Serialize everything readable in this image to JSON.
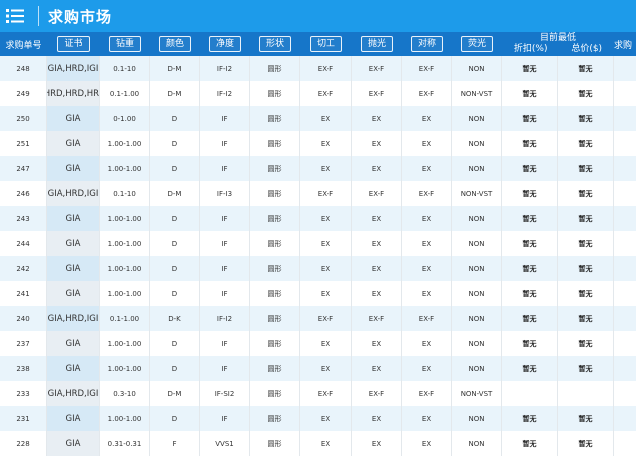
{
  "app": {
    "title": "求购市场"
  },
  "columns": {
    "order_no": "求购单号",
    "cert": "证书",
    "carat": "钻重",
    "color": "颜色",
    "clarity": "净度",
    "shape": "形状",
    "cut": "切工",
    "polish": "抛光",
    "symmetry": "对称",
    "fluor": "荧光",
    "lowest_title": "目前最低",
    "discount": "折扣(%)",
    "total": "总价($)",
    "clipped": "求购"
  },
  "rows": [
    {
      "no": "248",
      "cert": "GIA,HRD,IGI",
      "carat": "0.1-10",
      "color": "D-M",
      "clarity": "IF-I2",
      "shape": "圆形",
      "cut": "EX-F",
      "polish": "EX-F",
      "sym": "EX-F",
      "fluor": "NON",
      "discount": "暂无",
      "total": "暂无"
    },
    {
      "no": "249",
      "cert": "GIA,HRD,HRD,HRD,IGI",
      "carat": "0.1-1.00",
      "color": "D-M",
      "clarity": "IF-I2",
      "shape": "圆形",
      "cut": "EX-F",
      "polish": "EX-F",
      "sym": "EX-F",
      "fluor": "NON-VST",
      "discount": "暂无",
      "total": "暂无"
    },
    {
      "no": "250",
      "cert": "GIA",
      "carat": "0-1.00",
      "color": "D",
      "clarity": "IF",
      "shape": "圆形",
      "cut": "EX",
      "polish": "EX",
      "sym": "EX",
      "fluor": "NON",
      "discount": "暂无",
      "total": "暂无"
    },
    {
      "no": "251",
      "cert": "GIA",
      "carat": "1.00-1.00",
      "color": "D",
      "clarity": "IF",
      "shape": "圆形",
      "cut": "EX",
      "polish": "EX",
      "sym": "EX",
      "fluor": "NON",
      "discount": "暂无",
      "total": "暂无"
    },
    {
      "no": "247",
      "cert": "GIA",
      "carat": "1.00-1.00",
      "color": "D",
      "clarity": "IF",
      "shape": "圆形",
      "cut": "EX",
      "polish": "EX",
      "sym": "EX",
      "fluor": "NON",
      "discount": "暂无",
      "total": "暂无"
    },
    {
      "no": "246",
      "cert": "GIA,HRD,IGI",
      "carat": "0.1-10",
      "color": "D-M",
      "clarity": "IF-I3",
      "shape": "圆形",
      "cut": "EX-F",
      "polish": "EX-F",
      "sym": "EX-F",
      "fluor": "NON-VST",
      "discount": "暂无",
      "total": "暂无"
    },
    {
      "no": "243",
      "cert": "GIA",
      "carat": "1.00-1.00",
      "color": "D",
      "clarity": "IF",
      "shape": "圆形",
      "cut": "EX",
      "polish": "EX",
      "sym": "EX",
      "fluor": "NON",
      "discount": "暂无",
      "total": "暂无"
    },
    {
      "no": "244",
      "cert": "GIA",
      "carat": "1.00-1.00",
      "color": "D",
      "clarity": "IF",
      "shape": "圆形",
      "cut": "EX",
      "polish": "EX",
      "sym": "EX",
      "fluor": "NON",
      "discount": "暂无",
      "total": "暂无"
    },
    {
      "no": "242",
      "cert": "GIA",
      "carat": "1.00-1.00",
      "color": "D",
      "clarity": "IF",
      "shape": "圆形",
      "cut": "EX",
      "polish": "EX",
      "sym": "EX",
      "fluor": "NON",
      "discount": "暂无",
      "total": "暂无"
    },
    {
      "no": "241",
      "cert": "GIA",
      "carat": "1.00-1.00",
      "color": "D",
      "clarity": "IF",
      "shape": "圆形",
      "cut": "EX",
      "polish": "EX",
      "sym": "EX",
      "fluor": "NON",
      "discount": "暂无",
      "total": "暂无"
    },
    {
      "no": "240",
      "cert": "GIA,HRD,IGI",
      "carat": "0.1-1.00",
      "color": "D-K",
      "clarity": "IF-I2",
      "shape": "圆形",
      "cut": "EX-F",
      "polish": "EX-F",
      "sym": "EX-F",
      "fluor": "NON",
      "discount": "暂无",
      "total": "暂无"
    },
    {
      "no": "237",
      "cert": "GIA",
      "carat": "1.00-1.00",
      "color": "D",
      "clarity": "IF",
      "shape": "圆形",
      "cut": "EX",
      "polish": "EX",
      "sym": "EX",
      "fluor": "NON",
      "discount": "暂无",
      "total": "暂无"
    },
    {
      "no": "238",
      "cert": "GIA",
      "carat": "1.00-1.00",
      "color": "D",
      "clarity": "IF",
      "shape": "圆形",
      "cut": "EX",
      "polish": "EX",
      "sym": "EX",
      "fluor": "NON",
      "discount": "暂无",
      "total": "暂无"
    },
    {
      "no": "233",
      "cert": "GIA,HRD,IGI",
      "carat": "0.3-10",
      "color": "D-M",
      "clarity": "IF-SI2",
      "shape": "圆形",
      "cut": "EX-F",
      "polish": "EX-F",
      "sym": "EX-F",
      "fluor": "NON-VST",
      "discount": "",
      "total": ""
    },
    {
      "no": "231",
      "cert": "GIA",
      "carat": "1.00-1.00",
      "color": "D",
      "clarity": "IF",
      "shape": "圆形",
      "cut": "EX",
      "polish": "EX",
      "sym": "EX",
      "fluor": "NON",
      "discount": "暂无",
      "total": "暂无"
    },
    {
      "no": "228",
      "cert": "GIA",
      "carat": "0.31-0.31",
      "color": "F",
      "clarity": "VVS1",
      "shape": "圆形",
      "cut": "EX",
      "polish": "EX",
      "sym": "EX",
      "fluor": "NON",
      "discount": "暂无",
      "total": "暂无"
    }
  ],
  "colors": {
    "appbar": "#1d9bea",
    "header": "#1676c9",
    "row_alt": "#e9f4fb"
  }
}
